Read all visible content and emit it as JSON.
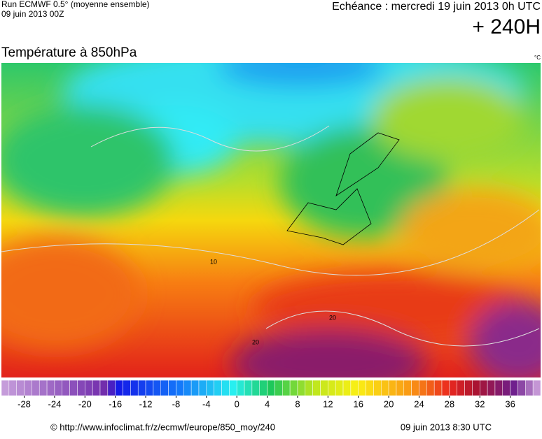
{
  "header": {
    "run": "Run ECMWF 0.5° (moyenne ensemble)",
    "run_date": "09 juin 2013 00Z",
    "valid": "Echéance : mercredi 19 juin 2013 0h UTC",
    "lead": "+ 240H"
  },
  "map": {
    "title": "Température à 850hPa",
    "unit": "°C",
    "contour_labels": [
      "10",
      "20",
      "20"
    ]
  },
  "colorbar": {
    "range": [
      -31,
      40
    ],
    "ticks": [
      -28,
      -24,
      -20,
      -16,
      -12,
      -8,
      -4,
      0,
      4,
      8,
      12,
      16,
      20,
      24,
      28,
      32,
      36
    ]
  },
  "footer": {
    "source": "© http://www.infoclimat.fr/z/ecmwf/europe/850_moy/240",
    "issued": "09 juin 2013  8:30 UTC"
  }
}
